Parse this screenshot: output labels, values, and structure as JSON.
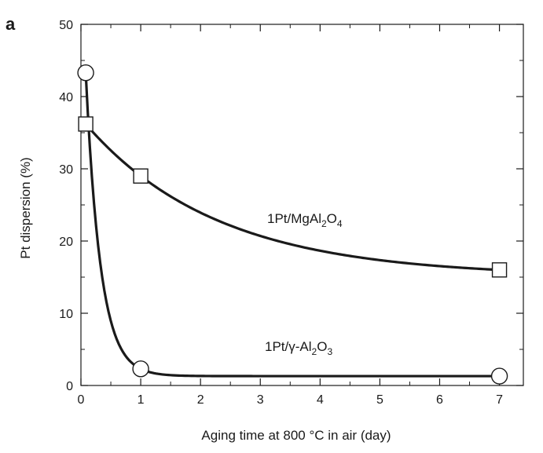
{
  "panel_label": "a",
  "chart_data": {
    "type": "scatter",
    "xlabel": "Aging time at 800 °C in air (day)",
    "ylabel": "Pt dispersion (%)",
    "xlim": [
      0,
      7.4
    ],
    "ylim": [
      0,
      50
    ],
    "x_ticks": [
      0,
      1,
      2,
      3,
      4,
      5,
      6,
      7
    ],
    "y_ticks": [
      0,
      10,
      20,
      30,
      40,
      50
    ],
    "grid": false,
    "series": [
      {
        "name": "1Pt/MgAl2O4",
        "label_parts": [
          "1Pt/MgAl",
          "2",
          "O",
          "4"
        ],
        "marker": "square",
        "x": [
          0.08,
          1,
          7
        ],
        "y": [
          36.2,
          29.0,
          16.0
        ]
      },
      {
        "name": "1Pt/γ-Al2O3",
        "label_parts": [
          "1Pt/γ-Al",
          "2",
          "O",
          "3"
        ],
        "marker": "circle",
        "x": [
          0.08,
          1,
          7
        ],
        "y": [
          43.3,
          2.3,
          1.3
        ]
      }
    ]
  }
}
